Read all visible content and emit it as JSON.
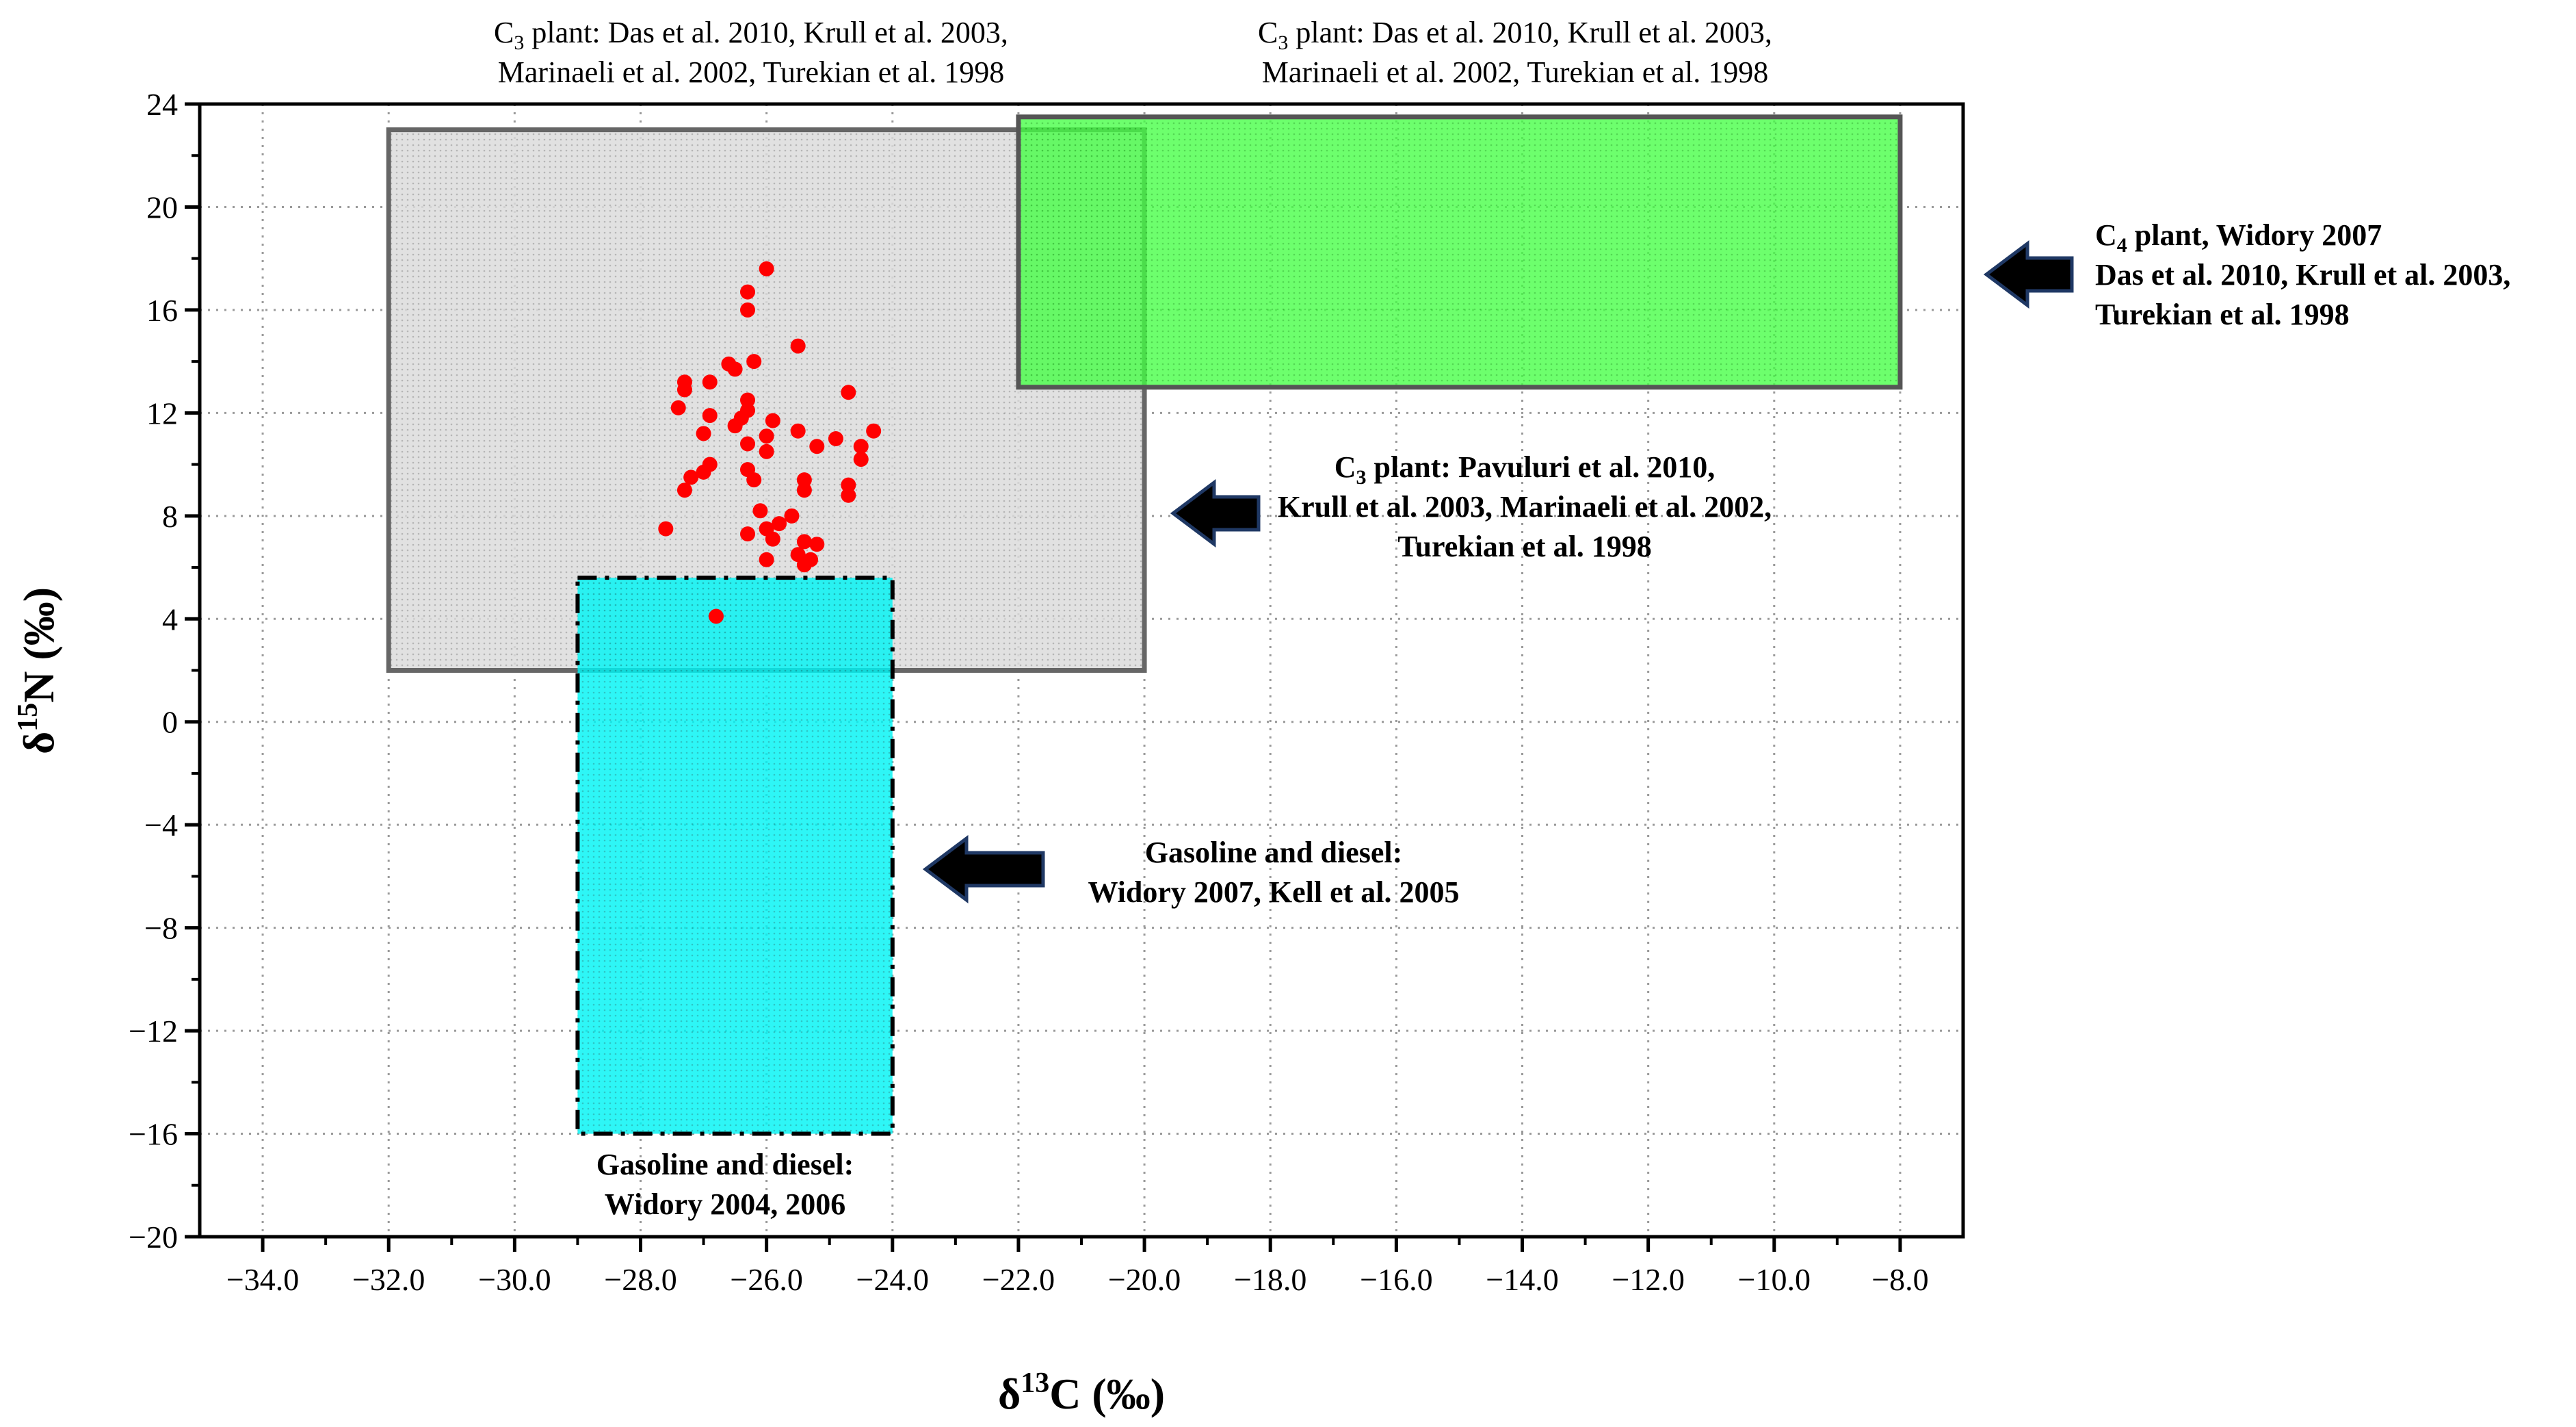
{
  "chart_data": {
    "type": "scatter",
    "xlabel": {
      "prefix": "δ",
      "sup": "13",
      "main": "C (‰)"
    },
    "ylabel": {
      "prefix": "δ",
      "sup": "15",
      "main": "N (‰)"
    },
    "xlim": [
      -35,
      -7
    ],
    "ylim": [
      -20,
      24
    ],
    "xticks": [
      -34,
      -32,
      -30,
      -28,
      -26,
      -24,
      -22,
      -20,
      -18,
      -16,
      -14,
      -12,
      -10,
      -8
    ],
    "xtick_labels": [
      "−34.0",
      "−32.0",
      "−30.0",
      "−28.0",
      "−26.0",
      "−24.0",
      "−22.0",
      "−20.0",
      "−18.0",
      "−16.0",
      "−14.0",
      "−12.0",
      "−10.0",
      "−8.0"
    ],
    "yticks": [
      -20,
      -16,
      -12,
      -8,
      -4,
      0,
      4,
      8,
      12,
      16,
      20,
      24
    ],
    "ytick_labels": [
      "−20",
      "−16",
      "−12",
      "−8",
      "−4",
      "0",
      "4",
      "8",
      "12",
      "16",
      "20",
      "24"
    ],
    "grid": true,
    "regions": [
      {
        "name": "C3 plant (Pavuluri et al. 2010, Krull et al. 2003, Marinaeli et al. 2002, Turekian et al. 1998)",
        "x0": -32,
        "x1": -20,
        "y0": 2,
        "y1": 23,
        "fill": "#d9d9d9",
        "stroke": "#666666"
      },
      {
        "name": "C4 plant (Widory 2007, Das et al. 2010, Krull et al. 2003, Turekian et al. 1998)",
        "x0": -22,
        "x1": -8,
        "y0": 13,
        "y1": 23.5,
        "fill": "#33ff33",
        "stroke": "#555555"
      },
      {
        "name": "Gasoline and diesel (Widory 2007, Kell et al. 2005 / Widory 2004, 2006)",
        "x0": -29,
        "x1": -24,
        "y0": -16,
        "y1": 5.6,
        "fill": "#00ffff",
        "stroke": "#000000",
        "dash": "dashdot"
      }
    ],
    "series": [
      {
        "name": "samples",
        "color": "#ff0000",
        "points": [
          [
            -26.0,
            17.6
          ],
          [
            -26.3,
            16.7
          ],
          [
            -26.3,
            16.0
          ],
          [
            -25.5,
            14.6
          ],
          [
            -26.2,
            14.0
          ],
          [
            -26.6,
            13.9
          ],
          [
            -26.5,
            13.7
          ],
          [
            -27.3,
            13.2
          ],
          [
            -27.3,
            12.9
          ],
          [
            -27.4,
            12.2
          ],
          [
            -26.9,
            13.2
          ],
          [
            -24.7,
            12.8
          ],
          [
            -26.3,
            12.5
          ],
          [
            -26.3,
            12.1
          ],
          [
            -26.4,
            11.8
          ],
          [
            -26.5,
            11.5
          ],
          [
            -26.9,
            11.9
          ],
          [
            -27.0,
            11.2
          ],
          [
            -25.9,
            11.7
          ],
          [
            -26.0,
            11.1
          ],
          [
            -25.5,
            11.3
          ],
          [
            -26.3,
            10.8
          ],
          [
            -26.0,
            10.5
          ],
          [
            -25.2,
            10.7
          ],
          [
            -24.9,
            11.0
          ],
          [
            -24.3,
            11.3
          ],
          [
            -24.5,
            10.7
          ],
          [
            -24.5,
            10.2
          ],
          [
            -26.9,
            10.0
          ],
          [
            -27.0,
            9.7
          ],
          [
            -27.2,
            9.5
          ],
          [
            -27.3,
            9.0
          ],
          [
            -26.3,
            9.8
          ],
          [
            -26.2,
            9.4
          ],
          [
            -25.4,
            9.4
          ],
          [
            -25.4,
            9.0
          ],
          [
            -24.7,
            9.2
          ],
          [
            -24.7,
            8.8
          ],
          [
            -26.1,
            8.2
          ],
          [
            -25.6,
            8.0
          ],
          [
            -25.8,
            7.7
          ],
          [
            -26.0,
            7.5
          ],
          [
            -26.3,
            7.3
          ],
          [
            -25.9,
            7.1
          ],
          [
            -27.6,
            7.5
          ],
          [
            -25.4,
            7.0
          ],
          [
            -25.2,
            6.9
          ],
          [
            -25.5,
            6.5
          ],
          [
            -25.3,
            6.3
          ],
          [
            -26.0,
            6.3
          ],
          [
            -25.4,
            6.1
          ],
          [
            -26.8,
            4.1
          ]
        ]
      }
    ],
    "annotations": [
      {
        "id": "c3-top-left",
        "lines": [
          {
            "pre": "C",
            "sub": "3",
            "post": " plant: Das et al. 2010, Krull et al. 2003,"
          },
          {
            "pre": "Marinaeli et al. 2002, Turekian et al. 1998"
          }
        ]
      },
      {
        "id": "c3-top-right",
        "lines": [
          {
            "pre": "C",
            "sub": "3",
            "post": " plant: Das et al. 2010, Krull et al. 2003,"
          },
          {
            "pre": "Marinaeli et al. 2002, Turekian et al. 1998"
          }
        ]
      },
      {
        "id": "c4-right",
        "lines": [
          {
            "pre": "C",
            "sub": "4",
            "post": " plant, Widory 2007"
          },
          {
            "pre": "Das et al. 2010, Krull et al. 2003,"
          },
          {
            "pre": "Turekian et al. 1998"
          }
        ]
      },
      {
        "id": "c3-middle",
        "lines": [
          {
            "pre": "C",
            "sub": "3",
            "post": " plant: Pavuluri et al. 2010,"
          },
          {
            "pre": "Krull et al. 2003, Marinaeli et al. 2002,"
          },
          {
            "pre": "Turekian et al. 1998"
          }
        ]
      },
      {
        "id": "gasoline-right",
        "lines": [
          {
            "pre": "Gasoline and diesel:"
          },
          {
            "pre": "Widory 2007, Kell et al. 2005"
          }
        ]
      },
      {
        "id": "gasoline-bottom",
        "lines": [
          {
            "pre": "Gasoline and diesel:"
          },
          {
            "pre": "Widory 2004, 2006"
          }
        ]
      }
    ]
  }
}
